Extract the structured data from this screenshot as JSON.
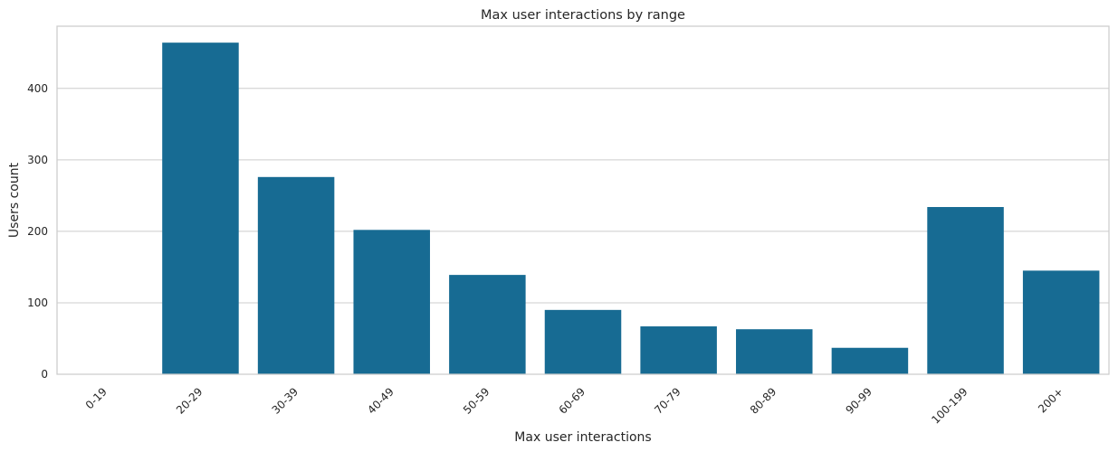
{
  "chart_data": {
    "type": "bar",
    "title": "Max user interactions by range",
    "xlabel": "Max user interactions",
    "ylabel": "Users count",
    "categories": [
      "0-19",
      "20-29",
      "30-39",
      "40-49",
      "50-59",
      "60-69",
      "70-79",
      "80-89",
      "90-99",
      "100-199",
      "200+"
    ],
    "values": [
      0,
      464,
      276,
      202,
      139,
      90,
      67,
      63,
      37,
      234,
      145
    ],
    "ylim": [
      0,
      487
    ],
    "yticks": [
      0,
      100,
      200,
      300,
      400
    ],
    "grid": true,
    "bar_color": "#176b93"
  }
}
